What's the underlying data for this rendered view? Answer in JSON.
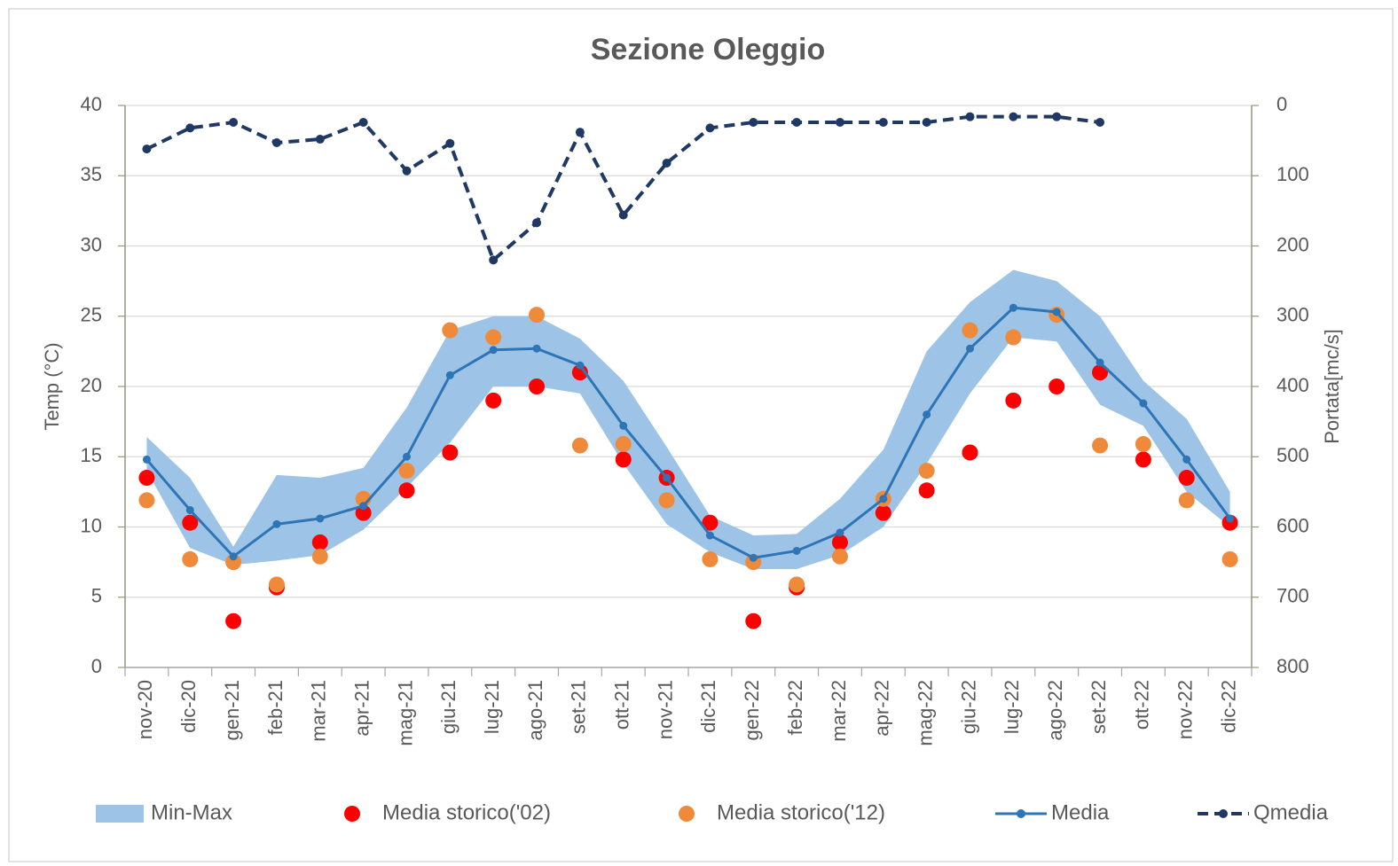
{
  "chart_data": {
    "type": "combo",
    "title": "Sezione Oleggio",
    "ylabel": "Temp (°C)",
    "y2label": "Portata[mc/s]",
    "categories": [
      "nov-20",
      "dic-20",
      "gen-21",
      "feb-21",
      "mar-21",
      "apr-21",
      "mag-21",
      "giu-21",
      "lug-21",
      "ago-21",
      "set-21",
      "ott-21",
      "nov-21",
      "dic-21",
      "gen-22",
      "feb-22",
      "mar-22",
      "apr-22",
      "mag-22",
      "giu-22",
      "lug-22",
      "ago-22",
      "set-22",
      "ott-22",
      "nov-22",
      "dic-22"
    ],
    "ylim": [
      0,
      40
    ],
    "yticks": [
      0,
      5,
      10,
      15,
      20,
      25,
      30,
      35,
      40
    ],
    "y2lim": [
      800,
      0
    ],
    "y2ticks": [
      0,
      100,
      200,
      300,
      400,
      500,
      600,
      700,
      800
    ],
    "grid": true,
    "legend": "bottom",
    "series": [
      {
        "name": "Min-Max",
        "kind": "band",
        "color": "#9dc3e6",
        "min": [
          14.0,
          8.5,
          7.3,
          7.6,
          8.0,
          9.8,
          12.8,
          16.0,
          20.0,
          20.0,
          19.5,
          14.5,
          10.2,
          8.2,
          7.0,
          7.0,
          8.0,
          10.0,
          14.5,
          19.5,
          23.5,
          23.2,
          18.7,
          17.2,
          12.5,
          10.0
        ],
        "max": [
          16.4,
          13.5,
          8.6,
          13.7,
          13.5,
          14.2,
          18.5,
          24.0,
          25.0,
          25.0,
          23.4,
          20.4,
          15.7,
          10.8,
          9.4,
          9.5,
          12.0,
          15.5,
          22.5,
          26.0,
          28.3,
          27.5,
          25.0,
          20.4,
          17.7,
          12.5
        ]
      },
      {
        "name": "Media storico('02)",
        "kind": "dots",
        "color": "#ff0000",
        "values": [
          13.5,
          10.3,
          3.3,
          5.7,
          8.9,
          11.0,
          12.6,
          15.3,
          19.0,
          20.0,
          21.0,
          14.8,
          13.5,
          10.3,
          3.3,
          5.7,
          8.9,
          11.0,
          12.6,
          15.3,
          19.0,
          20.0,
          21.0,
          14.8,
          13.5,
          10.3
        ]
      },
      {
        "name": "Media storico('12)",
        "kind": "dots",
        "color": "#ee8a3a",
        "values": [
          11.9,
          7.7,
          7.5,
          5.9,
          7.9,
          12.0,
          14.0,
          24.0,
          23.5,
          25.1,
          15.8,
          15.9,
          11.9,
          7.7,
          7.5,
          5.9,
          7.9,
          12.0,
          14.0,
          24.0,
          23.5,
          25.1,
          15.8,
          15.9,
          11.9,
          7.7
        ]
      },
      {
        "name": "Media",
        "kind": "line",
        "color": "#2e75b6",
        "values": [
          14.8,
          11.2,
          7.9,
          10.2,
          10.6,
          11.5,
          15.0,
          20.8,
          22.6,
          22.7,
          21.5,
          17.2,
          13.5,
          9.4,
          7.8,
          8.3,
          9.6,
          12.0,
          18.0,
          22.7,
          25.6,
          25.3,
          21.7,
          18.8,
          14.8,
          10.6
        ]
      },
      {
        "name": "Qmedia",
        "kind": "dashed",
        "color": "#1f3864",
        "axis": "y2",
        "values": [
          62,
          32,
          24,
          53,
          48,
          24,
          93,
          54,
          220,
          167,
          38,
          156,
          82,
          32,
          24,
          24,
          24,
          24,
          24,
          16,
          16,
          16,
          24,
          null,
          null,
          null
        ]
      }
    ]
  }
}
